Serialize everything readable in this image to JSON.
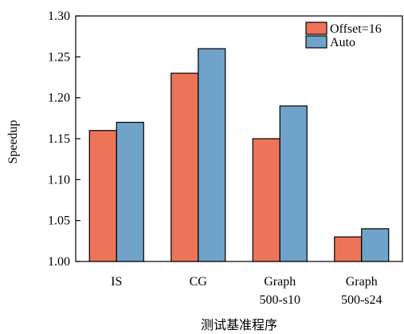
{
  "colors": {
    "offset": "#ee7459",
    "auto": "#6fa3c9",
    "stroke": "#000000"
  },
  "chart_data": {
    "type": "bar",
    "categories": [
      [
        "IS"
      ],
      [
        "CG"
      ],
      [
        "Graph",
        "500-s10"
      ],
      [
        "Graph",
        "500-s24"
      ]
    ],
    "series": [
      {
        "name": "Offset=16",
        "values": [
          1.16,
          1.23,
          1.15,
          1.03
        ]
      },
      {
        "name": "Auto",
        "values": [
          1.17,
          1.26,
          1.19,
          1.04
        ]
      }
    ],
    "title": "",
    "xlabel": "测试基准程序",
    "ylabel": "Speedup",
    "ylim": [
      1.0,
      1.3
    ],
    "yticks": [
      "1.00",
      "1.05",
      "1.10",
      "1.15",
      "1.20",
      "1.25",
      "1.30"
    ],
    "grid": false,
    "legend_position": "top-right"
  }
}
